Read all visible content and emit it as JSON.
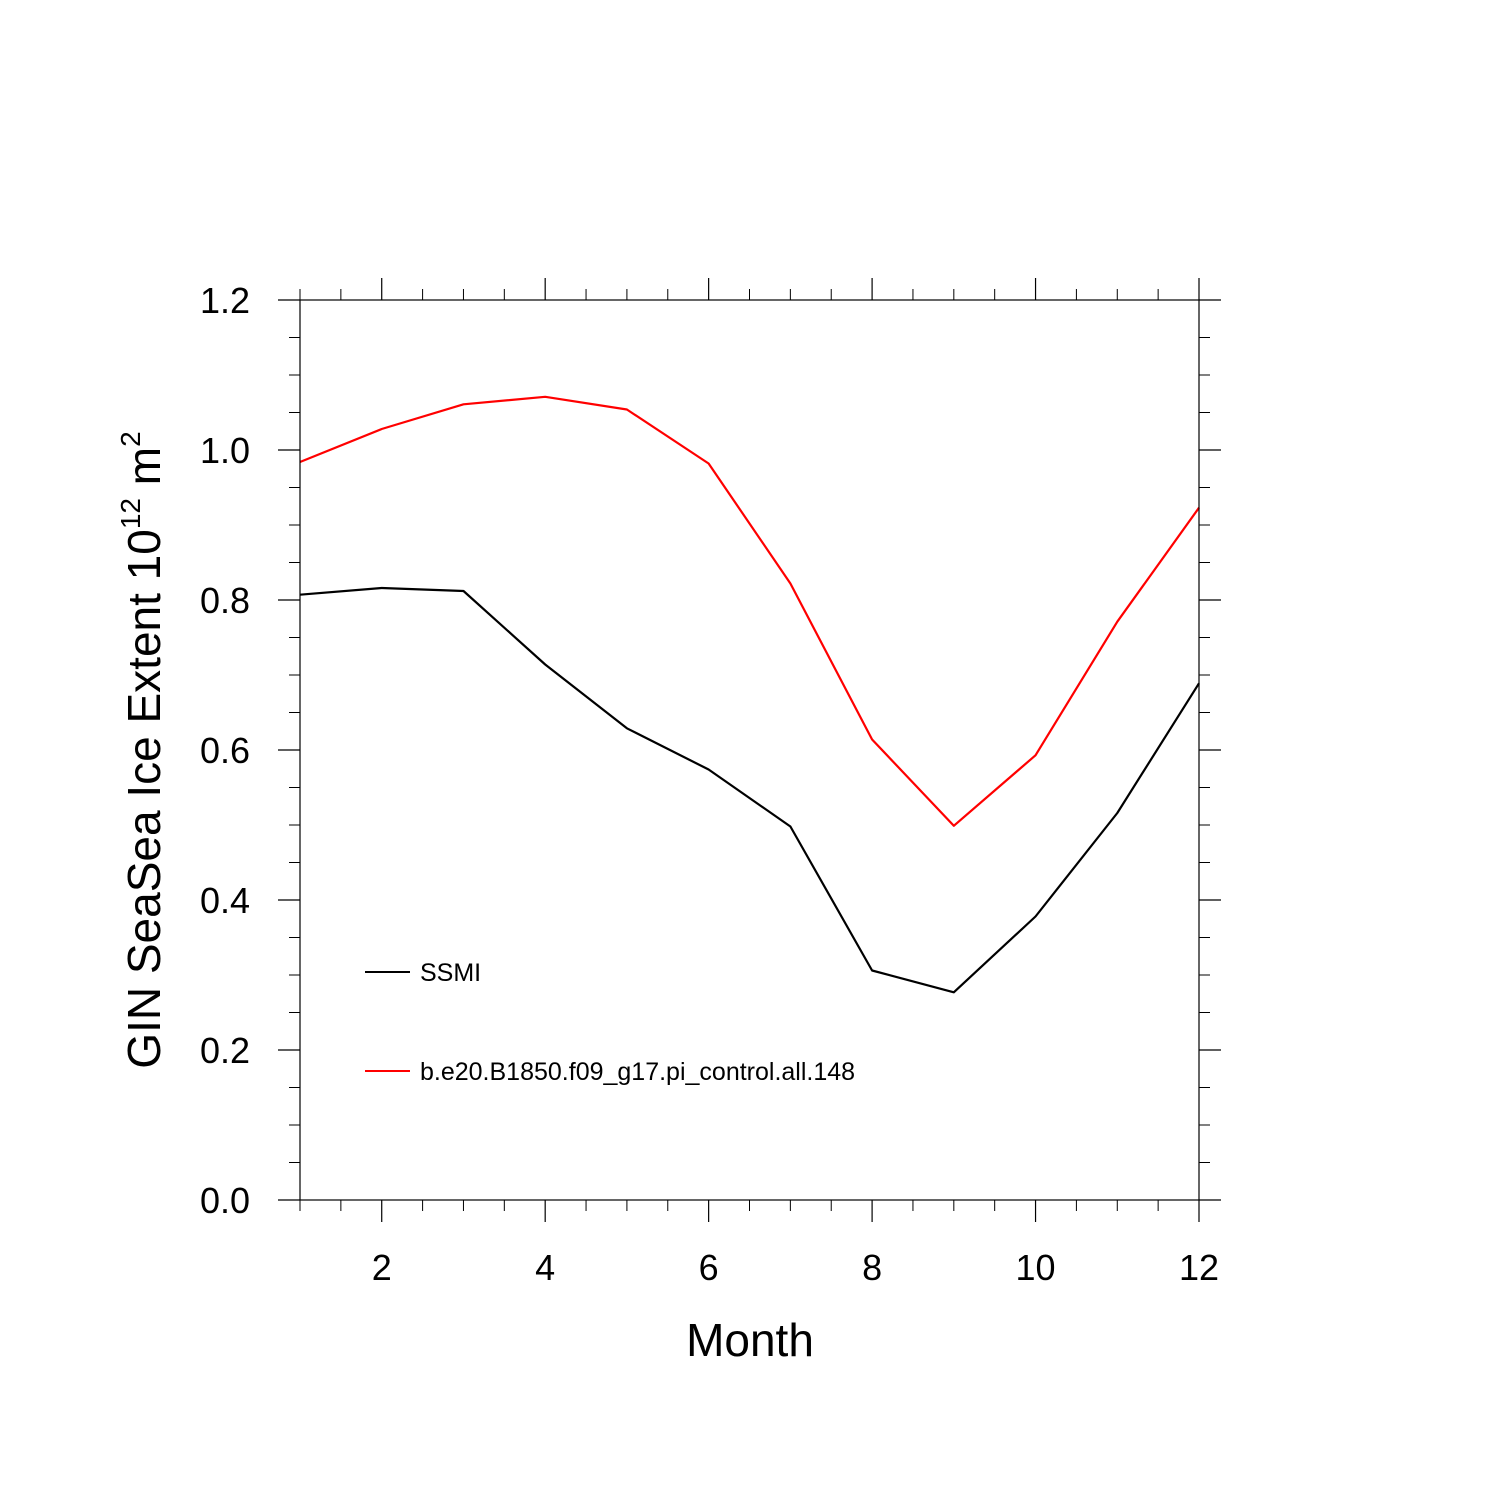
{
  "chart_data": {
    "type": "line",
    "title": "",
    "xlabel": "Month",
    "ylabel": {
      "base": "GIN SeaSea Ice Extent 10",
      "exp1": "12",
      "mid": " m",
      "exp2": "2"
    },
    "xlim": [
      1,
      12
    ],
    "ylim": [
      0.0,
      1.2
    ],
    "xticks": [
      2,
      4,
      6,
      8,
      10,
      12
    ],
    "xtick_labels": [
      "2",
      "4",
      "6",
      "8",
      "10",
      "12"
    ],
    "yticks": [
      0.0,
      0.2,
      0.4,
      0.6,
      0.8,
      1.0,
      1.2
    ],
    "ytick_labels": [
      "0.0",
      "0.2",
      "0.4",
      "0.6",
      "0.8",
      "1.0",
      "1.2"
    ],
    "grid": false,
    "legend_position": "bottom-left",
    "x": [
      1,
      2,
      3,
      4,
      5,
      6,
      7,
      8,
      9,
      10,
      11,
      12
    ],
    "series": [
      {
        "name": "SSMI",
        "color": "#000000",
        "values": [
          0.807,
          0.816,
          0.812,
          0.714,
          0.629,
          0.574,
          0.498,
          0.306,
          0.277,
          0.378,
          0.516,
          0.689
        ]
      },
      {
        "name": "b.e20.B1850.f09_g17.pi_control.all.148",
        "color": "#ff0000",
        "values": [
          0.984,
          1.028,
          1.061,
          1.071,
          1.054,
          0.982,
          0.822,
          0.614,
          0.499,
          0.593,
          0.771,
          0.923
        ]
      }
    ]
  }
}
